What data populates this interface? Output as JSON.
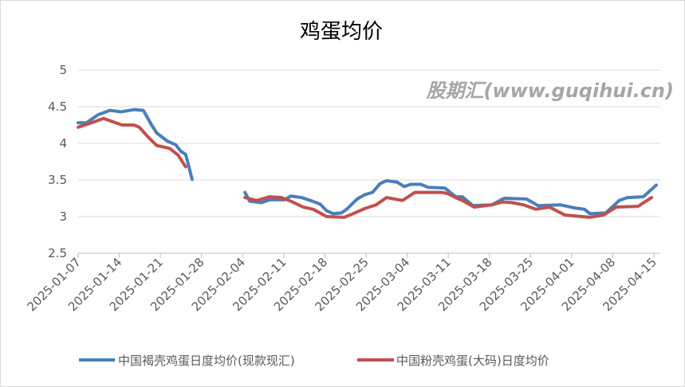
{
  "chart_data": {
    "type": "line",
    "title": "鸡蛋均价",
    "x_unit": "days since 2025-01-07",
    "x_origin": "2025-01-07",
    "xlim": [
      0,
      98
    ],
    "ylim": [
      2.5,
      5
    ],
    "yticks": [
      "2.5",
      "3",
      "3.5",
      "4",
      "4.5",
      "5"
    ],
    "xticks": [
      {
        "day": 0,
        "label": "2025-01-07"
      },
      {
        "day": 7,
        "label": "2025-01-14"
      },
      {
        "day": 14,
        "label": "2025-01-21"
      },
      {
        "day": 21,
        "label": "2025-01-28"
      },
      {
        "day": 28,
        "label": "2025-02-04"
      },
      {
        "day": 35,
        "label": "2025-02-11"
      },
      {
        "day": 42,
        "label": "2025-02-18"
      },
      {
        "day": 49,
        "label": "2025-02-25"
      },
      {
        "day": 56,
        "label": "2025-03-04"
      },
      {
        "day": 63,
        "label": "2025-03-11"
      },
      {
        "day": 70,
        "label": "2025-03-18"
      },
      {
        "day": 77,
        "label": "2025-03-25"
      },
      {
        "day": 84,
        "label": "2025-04-01"
      },
      {
        "day": 91,
        "label": "2025-04-08"
      },
      {
        "day": 98,
        "label": "2025-04-15"
      }
    ],
    "grid": true,
    "legend_position": "bottom",
    "series": [
      {
        "name": "中国褐壳鸡蛋日度均价(现款现汇)",
        "color": "#4a7ebb",
        "segments": [
          [
            [
              0,
              4.28
            ],
            [
              1.4,
              4.28
            ],
            [
              3.4,
              4.39
            ],
            [
              5.4,
              4.45
            ],
            [
              7.3,
              4.43
            ],
            [
              9.5,
              4.46
            ],
            [
              11.1,
              4.45
            ],
            [
              12.5,
              4.25
            ],
            [
              13.4,
              4.14
            ],
            [
              15.2,
              4.03
            ],
            [
              16.6,
              3.98
            ],
            [
              17.5,
              3.89
            ],
            [
              18.3,
              3.85
            ],
            [
              19.4,
              3.51
            ]
          ],
          [
            [
              28.4,
              3.33
            ],
            [
              29.2,
              3.21
            ],
            [
              31.2,
              3.19
            ],
            [
              32.6,
              3.23
            ],
            [
              35.1,
              3.23
            ],
            [
              36.2,
              3.28
            ],
            [
              38,
              3.26
            ],
            [
              39.9,
              3.21
            ],
            [
              41.2,
              3.17
            ],
            [
              42.3,
              3.08
            ],
            [
              43.4,
              3.04
            ],
            [
              44.8,
              3.05
            ],
            [
              45.7,
              3.1
            ],
            [
              47.5,
              3.24
            ],
            [
              48.8,
              3.3
            ],
            [
              50.1,
              3.33
            ],
            [
              51.4,
              3.45
            ],
            [
              52.5,
              3.49
            ],
            [
              54.3,
              3.47
            ],
            [
              55.5,
              3.41
            ],
            [
              56.6,
              3.44
            ],
            [
              58.3,
              3.44
            ],
            [
              59.6,
              3.4
            ],
            [
              62.4,
              3.39
            ],
            [
              64.3,
              3.27
            ],
            [
              65.4,
              3.27
            ],
            [
              67.2,
              3.15
            ],
            [
              70.4,
              3.16
            ],
            [
              72.5,
              3.25
            ],
            [
              76.3,
              3.24
            ],
            [
              78.3,
              3.15
            ],
            [
              82.1,
              3.16
            ],
            [
              84.4,
              3.12
            ],
            [
              86.2,
              3.1
            ],
            [
              87.1,
              3.04
            ],
            [
              89.8,
              3.05
            ],
            [
              92.1,
              3.22
            ],
            [
              93.5,
              3.26
            ],
            [
              96.2,
              3.27
            ],
            [
              98.4,
              3.43
            ]
          ]
        ]
      },
      {
        "name": "中国粉壳鸡蛋(大码)日度均价",
        "color": "#c0504d",
        "segments": [
          [
            [
              0,
              4.22
            ],
            [
              2.6,
              4.29
            ],
            [
              4.3,
              4.34
            ],
            [
              7.5,
              4.25
            ],
            [
              9.5,
              4.25
            ],
            [
              10.4,
              4.22
            ],
            [
              12.1,
              4.07
            ],
            [
              13.4,
              3.97
            ],
            [
              14.5,
              3.95
            ],
            [
              15.6,
              3.93
            ],
            [
              17,
              3.84
            ],
            [
              18.3,
              3.68
            ]
          ],
          [
            [
              28.4,
              3.26
            ],
            [
              30.4,
              3.22
            ],
            [
              32.6,
              3.27
            ],
            [
              34.6,
              3.26
            ],
            [
              36.2,
              3.21
            ],
            [
              38.3,
              3.13
            ],
            [
              40,
              3.1
            ],
            [
              42.3,
              3.0
            ],
            [
              45.3,
              2.99
            ],
            [
              46.8,
              3.04
            ],
            [
              48.8,
              3.11
            ],
            [
              50.7,
              3.16
            ],
            [
              52.5,
              3.26
            ],
            [
              55.2,
              3.22
            ],
            [
              57.3,
              3.33
            ],
            [
              62,
              3.33
            ],
            [
              63,
              3.31
            ],
            [
              64.5,
              3.25
            ],
            [
              65.4,
              3.22
            ],
            [
              67.4,
              3.13
            ],
            [
              70.4,
              3.16
            ],
            [
              72.2,
              3.2
            ],
            [
              73.9,
              3.19
            ],
            [
              75.8,
              3.16
            ],
            [
              77.9,
              3.1
            ],
            [
              80.2,
              3.13
            ],
            [
              82.9,
              3.02
            ],
            [
              87.1,
              2.99
            ],
            [
              89.4,
              3.02
            ],
            [
              91.6,
              3.13
            ],
            [
              95.3,
              3.14
            ],
            [
              97.6,
              3.26
            ]
          ]
        ]
      }
    ]
  },
  "watermark": "股期汇(www.guqihui.cn)"
}
